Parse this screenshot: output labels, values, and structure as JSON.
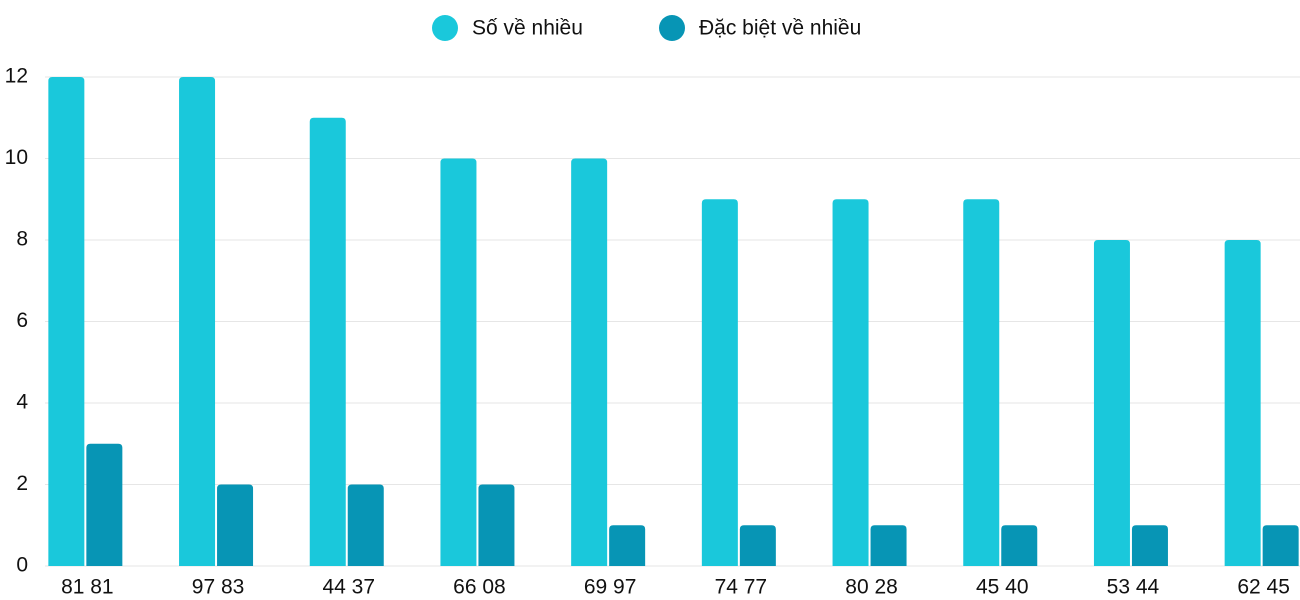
{
  "chart_data": {
    "type": "bar",
    "categories": [
      "81 81",
      "97 83",
      "44 37",
      "66 08",
      "69 97",
      "74 77",
      "80 28",
      "45 40",
      "53 44",
      "62 45"
    ],
    "series": [
      {
        "name": "Số về nhiều",
        "color": "#1ac8db",
        "values": [
          12,
          12,
          11,
          10,
          10,
          9,
          9,
          9,
          8,
          8
        ]
      },
      {
        "name": "Đặc biệt về nhiều",
        "color": "#0795b5",
        "values": [
          3,
          2,
          2,
          2,
          1,
          1,
          1,
          1,
          1,
          1
        ]
      }
    ],
    "ylim": [
      0,
      12
    ],
    "yticks": [
      0,
      2,
      4,
      6,
      8,
      10,
      12
    ],
    "grid": true,
    "legend": "top"
  }
}
